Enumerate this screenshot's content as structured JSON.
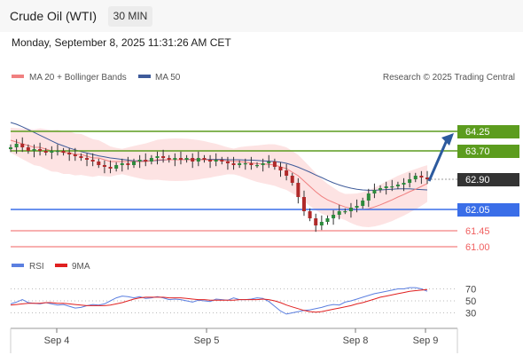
{
  "header": {
    "instrument": "Crude Oil (WTI)",
    "timeframe": "30 MIN"
  },
  "timestamp": "Monday, September 8, 2025 11:31:26 AM CET",
  "legend": {
    "ma20": "MA 20 + Bollinger Bands",
    "ma50": "MA 50",
    "rsi": "RSI",
    "ma9": "9MA"
  },
  "credit": "Research © 2025 Trading Central",
  "colors": {
    "ma20": "#f08080",
    "ma50": "#3f5b9a",
    "resistance": "#5c9c1e",
    "pivot": "#3a6ee8",
    "support": "#f06060",
    "last": "#333333",
    "rsi": "#5b7fe0",
    "rsi_ma": "#e02020",
    "up": "#2c8a3c",
    "down": "#b02a2a",
    "arrow": "#2c5a9e",
    "band": "#fde3e3"
  },
  "chart_data": [
    {
      "type": "candlestick",
      "x_ticks": [
        "Sep 4",
        "Sep 5",
        "Sep 8",
        "Sep 9"
      ],
      "y_range": [
        60.8,
        65.2
      ],
      "levels": [
        {
          "label": "64.25",
          "value": 64.25,
          "kind": "resistance"
        },
        {
          "label": "63.70",
          "value": 63.7,
          "kind": "resistance"
        },
        {
          "label": "62.90",
          "value": 62.9,
          "kind": "last"
        },
        {
          "label": "62.05",
          "value": 62.05,
          "kind": "pivot"
        },
        {
          "label": "61.45",
          "value": 61.45,
          "kind": "support"
        },
        {
          "label": "61.00",
          "value": 61.0,
          "kind": "support"
        }
      ],
      "close": [
        63.8,
        63.9,
        63.8,
        63.7,
        63.75,
        63.7,
        63.65,
        63.7,
        63.7,
        63.65,
        63.6,
        63.55,
        63.5,
        63.45,
        63.4,
        63.3,
        63.25,
        63.2,
        63.3,
        63.35,
        63.3,
        63.4,
        63.45,
        63.4,
        63.5,
        63.55,
        63.5,
        63.45,
        63.5,
        63.45,
        63.5,
        63.4,
        63.5,
        63.45,
        63.4,
        63.45,
        63.4,
        63.35,
        63.3,
        63.35,
        63.35,
        63.3,
        63.3,
        63.35,
        63.4,
        63.25,
        63.15,
        63.0,
        62.8,
        62.4,
        62.0,
        61.8,
        61.6,
        61.7,
        61.8,
        61.9,
        62.0,
        62.0,
        62.1,
        62.15,
        62.3,
        62.5,
        62.6,
        62.65,
        62.7,
        62.7,
        62.75,
        62.8,
        62.9,
        63.0,
        62.95,
        62.9
      ],
      "ma20": [
        64.0,
        63.95,
        63.9,
        63.85,
        63.8,
        63.8,
        63.75,
        63.7,
        63.7,
        63.65,
        63.65,
        63.6,
        63.6,
        63.55,
        63.5,
        63.5,
        63.45,
        63.4,
        63.4,
        63.4,
        63.4,
        63.4,
        63.4,
        63.4,
        63.42,
        63.45,
        63.45,
        63.45,
        63.45,
        63.45,
        63.45,
        63.45,
        63.45,
        63.45,
        63.44,
        63.44,
        63.43,
        63.42,
        63.4,
        63.4,
        63.38,
        63.36,
        63.34,
        63.33,
        63.32,
        63.3,
        63.25,
        63.2,
        63.1,
        63.0,
        62.85,
        62.7,
        62.55,
        62.42,
        62.32,
        62.25,
        62.18,
        62.12,
        62.08,
        62.05,
        62.05,
        62.07,
        62.12,
        62.18,
        62.25,
        62.32,
        62.4,
        62.47,
        62.55,
        62.62,
        62.7,
        62.78
      ],
      "ma50": [
        64.5,
        64.45,
        64.38,
        64.3,
        64.22,
        64.14,
        64.06,
        63.98,
        63.9,
        63.84,
        63.78,
        63.73,
        63.68,
        63.64,
        63.6,
        63.56,
        63.53,
        63.5,
        63.48,
        63.46,
        63.44,
        63.42,
        63.42,
        63.42,
        63.42,
        63.43,
        63.44,
        63.45,
        63.45,
        63.45,
        63.46,
        63.46,
        63.46,
        63.46,
        63.46,
        63.46,
        63.46,
        63.45,
        63.45,
        63.45,
        63.44,
        63.44,
        63.43,
        63.42,
        63.41,
        63.4,
        63.38,
        63.35,
        63.3,
        63.24,
        63.17,
        63.1,
        63.02,
        62.95,
        62.87,
        62.8,
        62.74,
        62.69,
        62.65,
        62.62,
        62.6,
        62.59,
        62.59,
        62.6,
        62.61,
        62.62,
        62.63,
        62.63,
        62.63,
        62.62,
        62.61,
        62.6
      ]
    },
    {
      "type": "line",
      "y_ticks": [
        30,
        50,
        70
      ],
      "y_range": [
        10,
        90
      ],
      "series": [
        {
          "name": "RSI",
          "values": [
            45,
            48,
            52,
            47,
            46,
            45,
            47,
            45,
            43,
            44,
            41,
            38,
            39,
            42,
            44,
            43,
            45,
            50,
            55,
            58,
            57,
            55,
            57,
            54,
            55,
            57,
            55,
            52,
            53,
            52,
            50,
            48,
            51,
            50,
            49,
            53,
            52,
            51,
            55,
            52,
            52,
            53,
            55,
            54,
            49,
            41,
            33,
            28,
            30,
            32,
            34,
            35,
            37,
            39,
            42,
            44,
            43,
            48,
            50,
            53,
            56,
            59,
            62,
            64,
            66,
            68,
            70,
            70,
            72,
            72,
            70,
            66
          ]
        },
        {
          "name": "9MA",
          "values": [
            43,
            44,
            45,
            46,
            46,
            46,
            47,
            47,
            46,
            46,
            45,
            44,
            43,
            42,
            42,
            42,
            42,
            43,
            45,
            47,
            50,
            53,
            55,
            56,
            56,
            56,
            56,
            55,
            55,
            55,
            54,
            53,
            52,
            52,
            51,
            51,
            51,
            51,
            51,
            52,
            52,
            52,
            52,
            53,
            52,
            50,
            47,
            43,
            40,
            37,
            34,
            32,
            31,
            32,
            34,
            36,
            38,
            40,
            42,
            45,
            47,
            50,
            53,
            56,
            58,
            60,
            62,
            64,
            66,
            67,
            68,
            69
          ]
        }
      ]
    }
  ]
}
